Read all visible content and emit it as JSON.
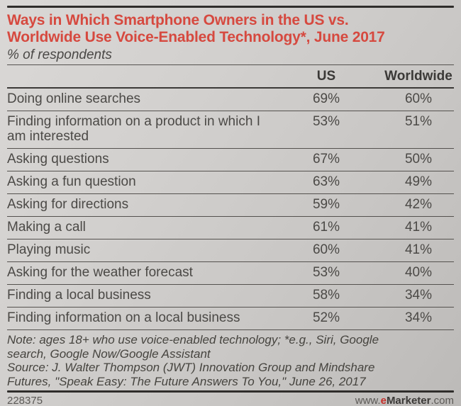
{
  "header": {
    "title_line1": "Ways in Which Smartphone Owners in the US vs.",
    "title_line2": "Worldwide Use Voice-Enabled Technology*, June 2017",
    "subtitle": "% of respondents"
  },
  "table": {
    "columns": {
      "us": "US",
      "worldwide": "Worldwide"
    },
    "rows": [
      {
        "label": "Doing online searches",
        "us": "69%",
        "worldwide": "60%"
      },
      {
        "label": "Finding information on a product in which I am interested",
        "us": "53%",
        "worldwide": "51%"
      },
      {
        "label": "Asking questions",
        "us": "67%",
        "worldwide": "50%"
      },
      {
        "label": "Asking a fun question",
        "us": "63%",
        "worldwide": "49%"
      },
      {
        "label": "Asking for directions",
        "us": "59%",
        "worldwide": "42%"
      },
      {
        "label": "Making a call",
        "us": "61%",
        "worldwide": "41%"
      },
      {
        "label": "Playing music",
        "us": "60%",
        "worldwide": "41%"
      },
      {
        "label": "Asking for the weather forecast",
        "us": "53%",
        "worldwide": "40%"
      },
      {
        "label": "Finding a local business",
        "us": "58%",
        "worldwide": "34%"
      },
      {
        "label": "Finding information on a local business",
        "us": "52%",
        "worldwide": "34%"
      }
    ]
  },
  "notes": {
    "note": "Note: ages 18+ who use voice-enabled technology; *e.g., Siri, Google search, Google Now/Google Assistant",
    "source": "Source: J. Walter Thompson (JWT) Innovation Group and Mindshare Futures, \"Speak Easy: The Future Answers To You,\" June 26, 2017"
  },
  "footer": {
    "chart_id": "228375",
    "url_prefix": "www.",
    "url_brand_e": "e",
    "url_brand_rest": "Marketer",
    "url_suffix": ".com"
  },
  "colors": {
    "accent_red": "#d6493f",
    "brand_red": "#c62f2a",
    "text_dark": "#3b3937"
  },
  "chart_data": {
    "type": "table",
    "title": "Ways in Which Smartphone Owners in the US vs. Worldwide Use Voice-Enabled Technology*, June 2017",
    "subtitle": "% of respondents",
    "categories": [
      "Doing online searches",
      "Finding information on a product in which I am interested",
      "Asking questions",
      "Asking a fun question",
      "Asking for directions",
      "Making a call",
      "Playing music",
      "Asking for the weather forecast",
      "Finding a local business",
      "Finding information on a local business"
    ],
    "series": [
      {
        "name": "US",
        "values": [
          69,
          53,
          67,
          63,
          59,
          61,
          60,
          53,
          58,
          52
        ]
      },
      {
        "name": "Worldwide",
        "values": [
          60,
          51,
          50,
          49,
          42,
          41,
          41,
          40,
          34,
          34
        ]
      }
    ],
    "unit": "%",
    "note": "Note: ages 18+ who use voice-enabled technology; *e.g., Siri, Google search, Google Now/Google Assistant",
    "source": "Source: J. Walter Thompson (JWT) Innovation Group and Mindshare Futures, \"Speak Easy: The Future Answers To You,\" June 26, 2017"
  }
}
